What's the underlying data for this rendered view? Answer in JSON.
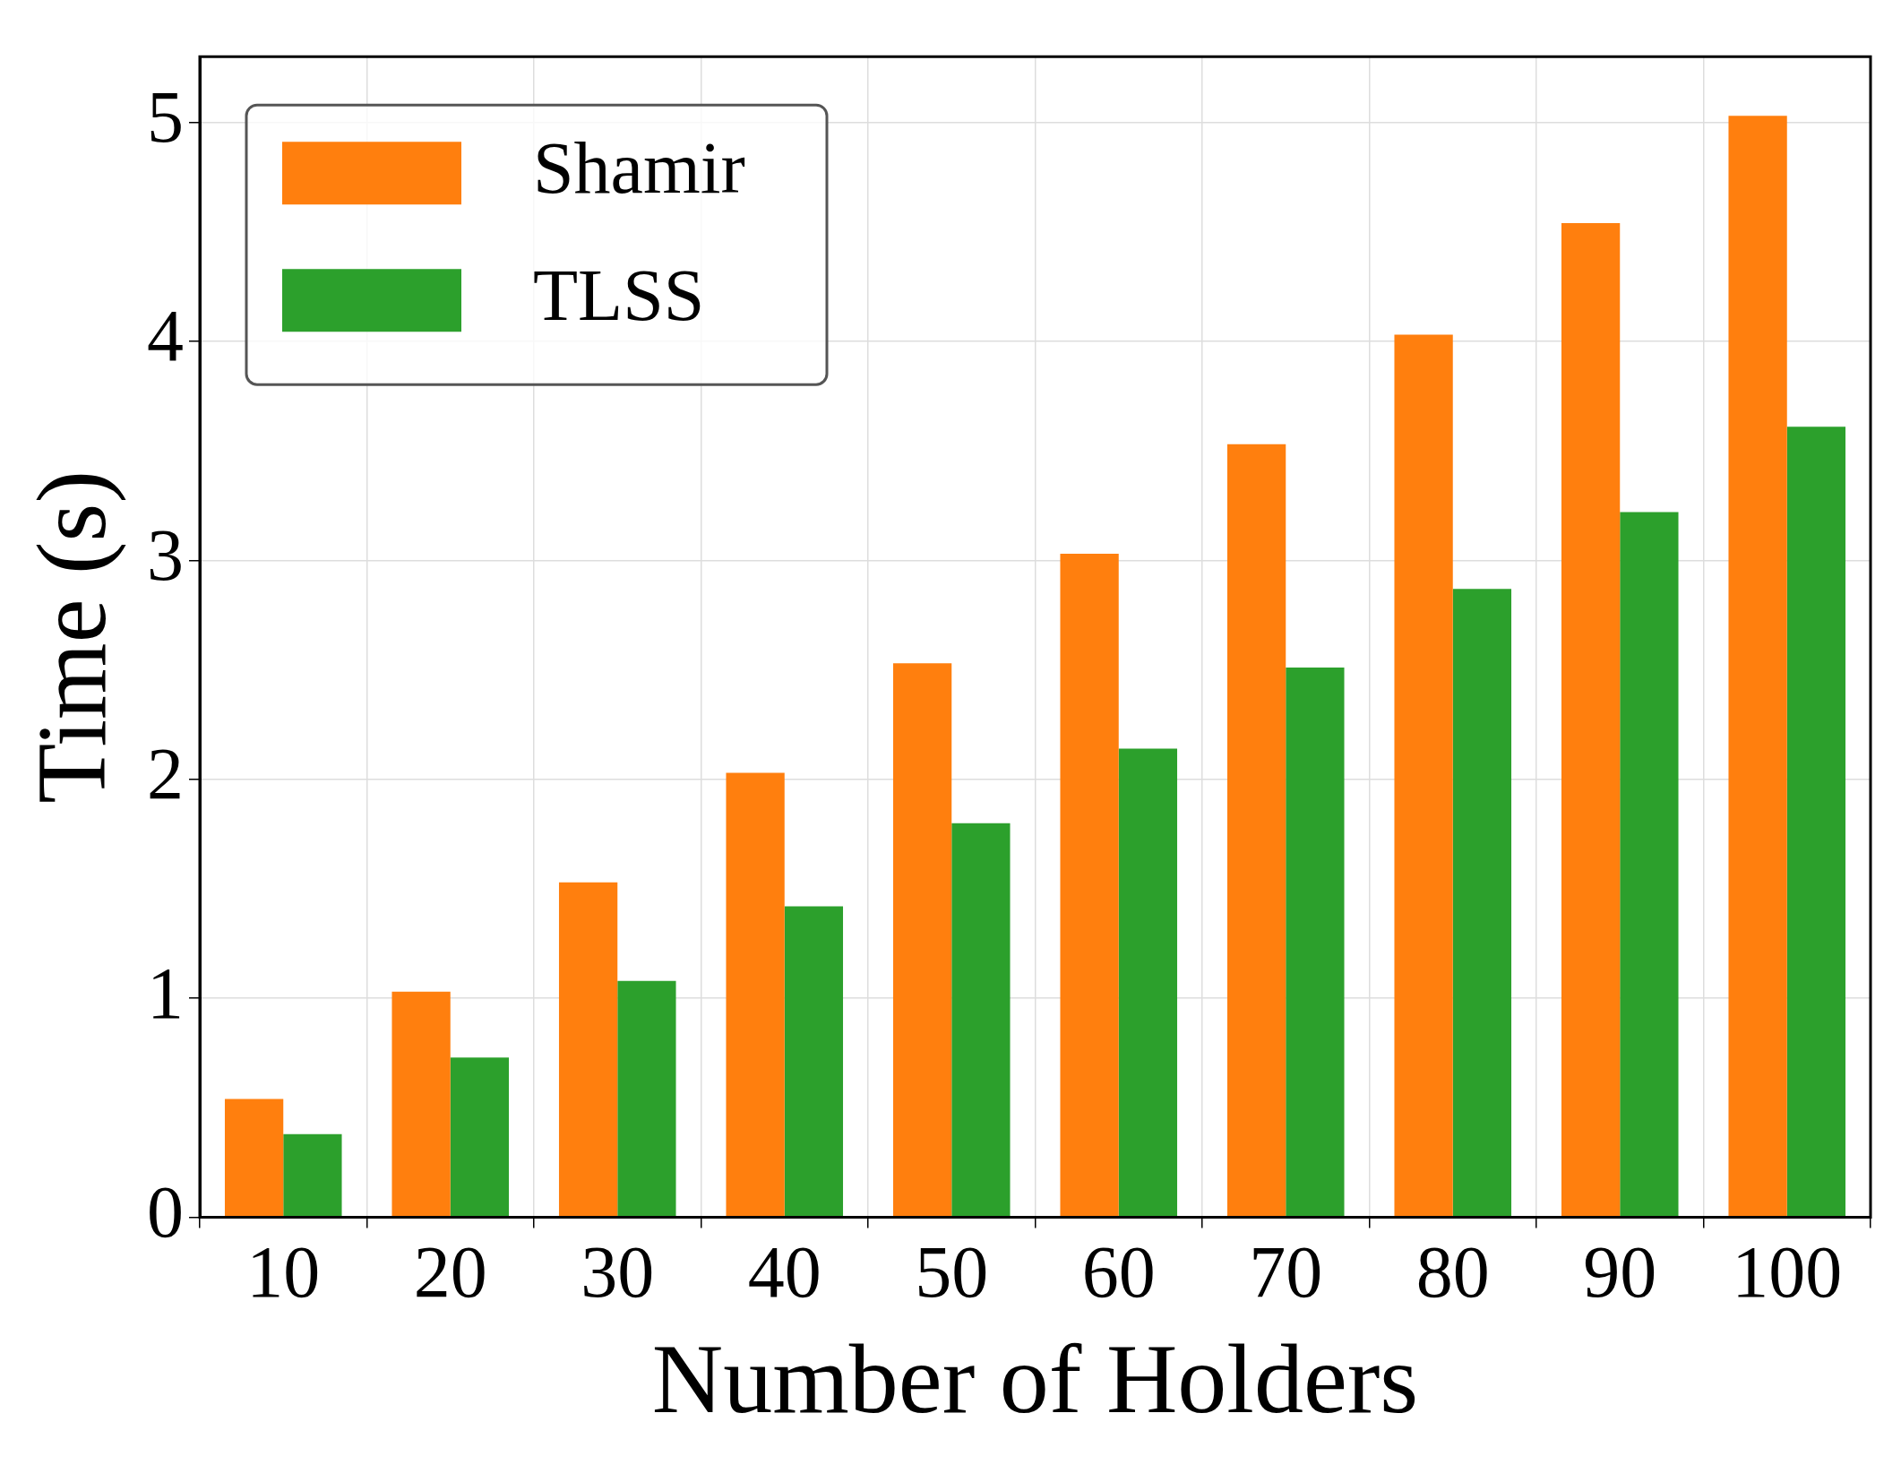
{
  "chart_data": {
    "type": "bar",
    "xlabel": "Number of Holders",
    "ylabel": "Time (s)",
    "categories": [
      "10",
      "20",
      "30",
      "40",
      "50",
      "60",
      "70",
      "80",
      "90",
      "100"
    ],
    "series": [
      {
        "name": "Shamir",
        "color": "#ff7f0e",
        "values": [
          0.54,
          1.03,
          1.53,
          2.03,
          2.53,
          3.03,
          3.53,
          4.03,
          4.54,
          5.03
        ]
      },
      {
        "name": "TLSS",
        "color": "#2ca02c",
        "values": [
          0.38,
          0.73,
          1.08,
          1.42,
          1.8,
          2.14,
          2.51,
          2.87,
          3.22,
          3.61
        ]
      }
    ],
    "ylim": [
      0,
      5.3
    ],
    "yticks": [
      0,
      1,
      2,
      3,
      4,
      5
    ],
    "grid": true,
    "legend": "top left"
  }
}
